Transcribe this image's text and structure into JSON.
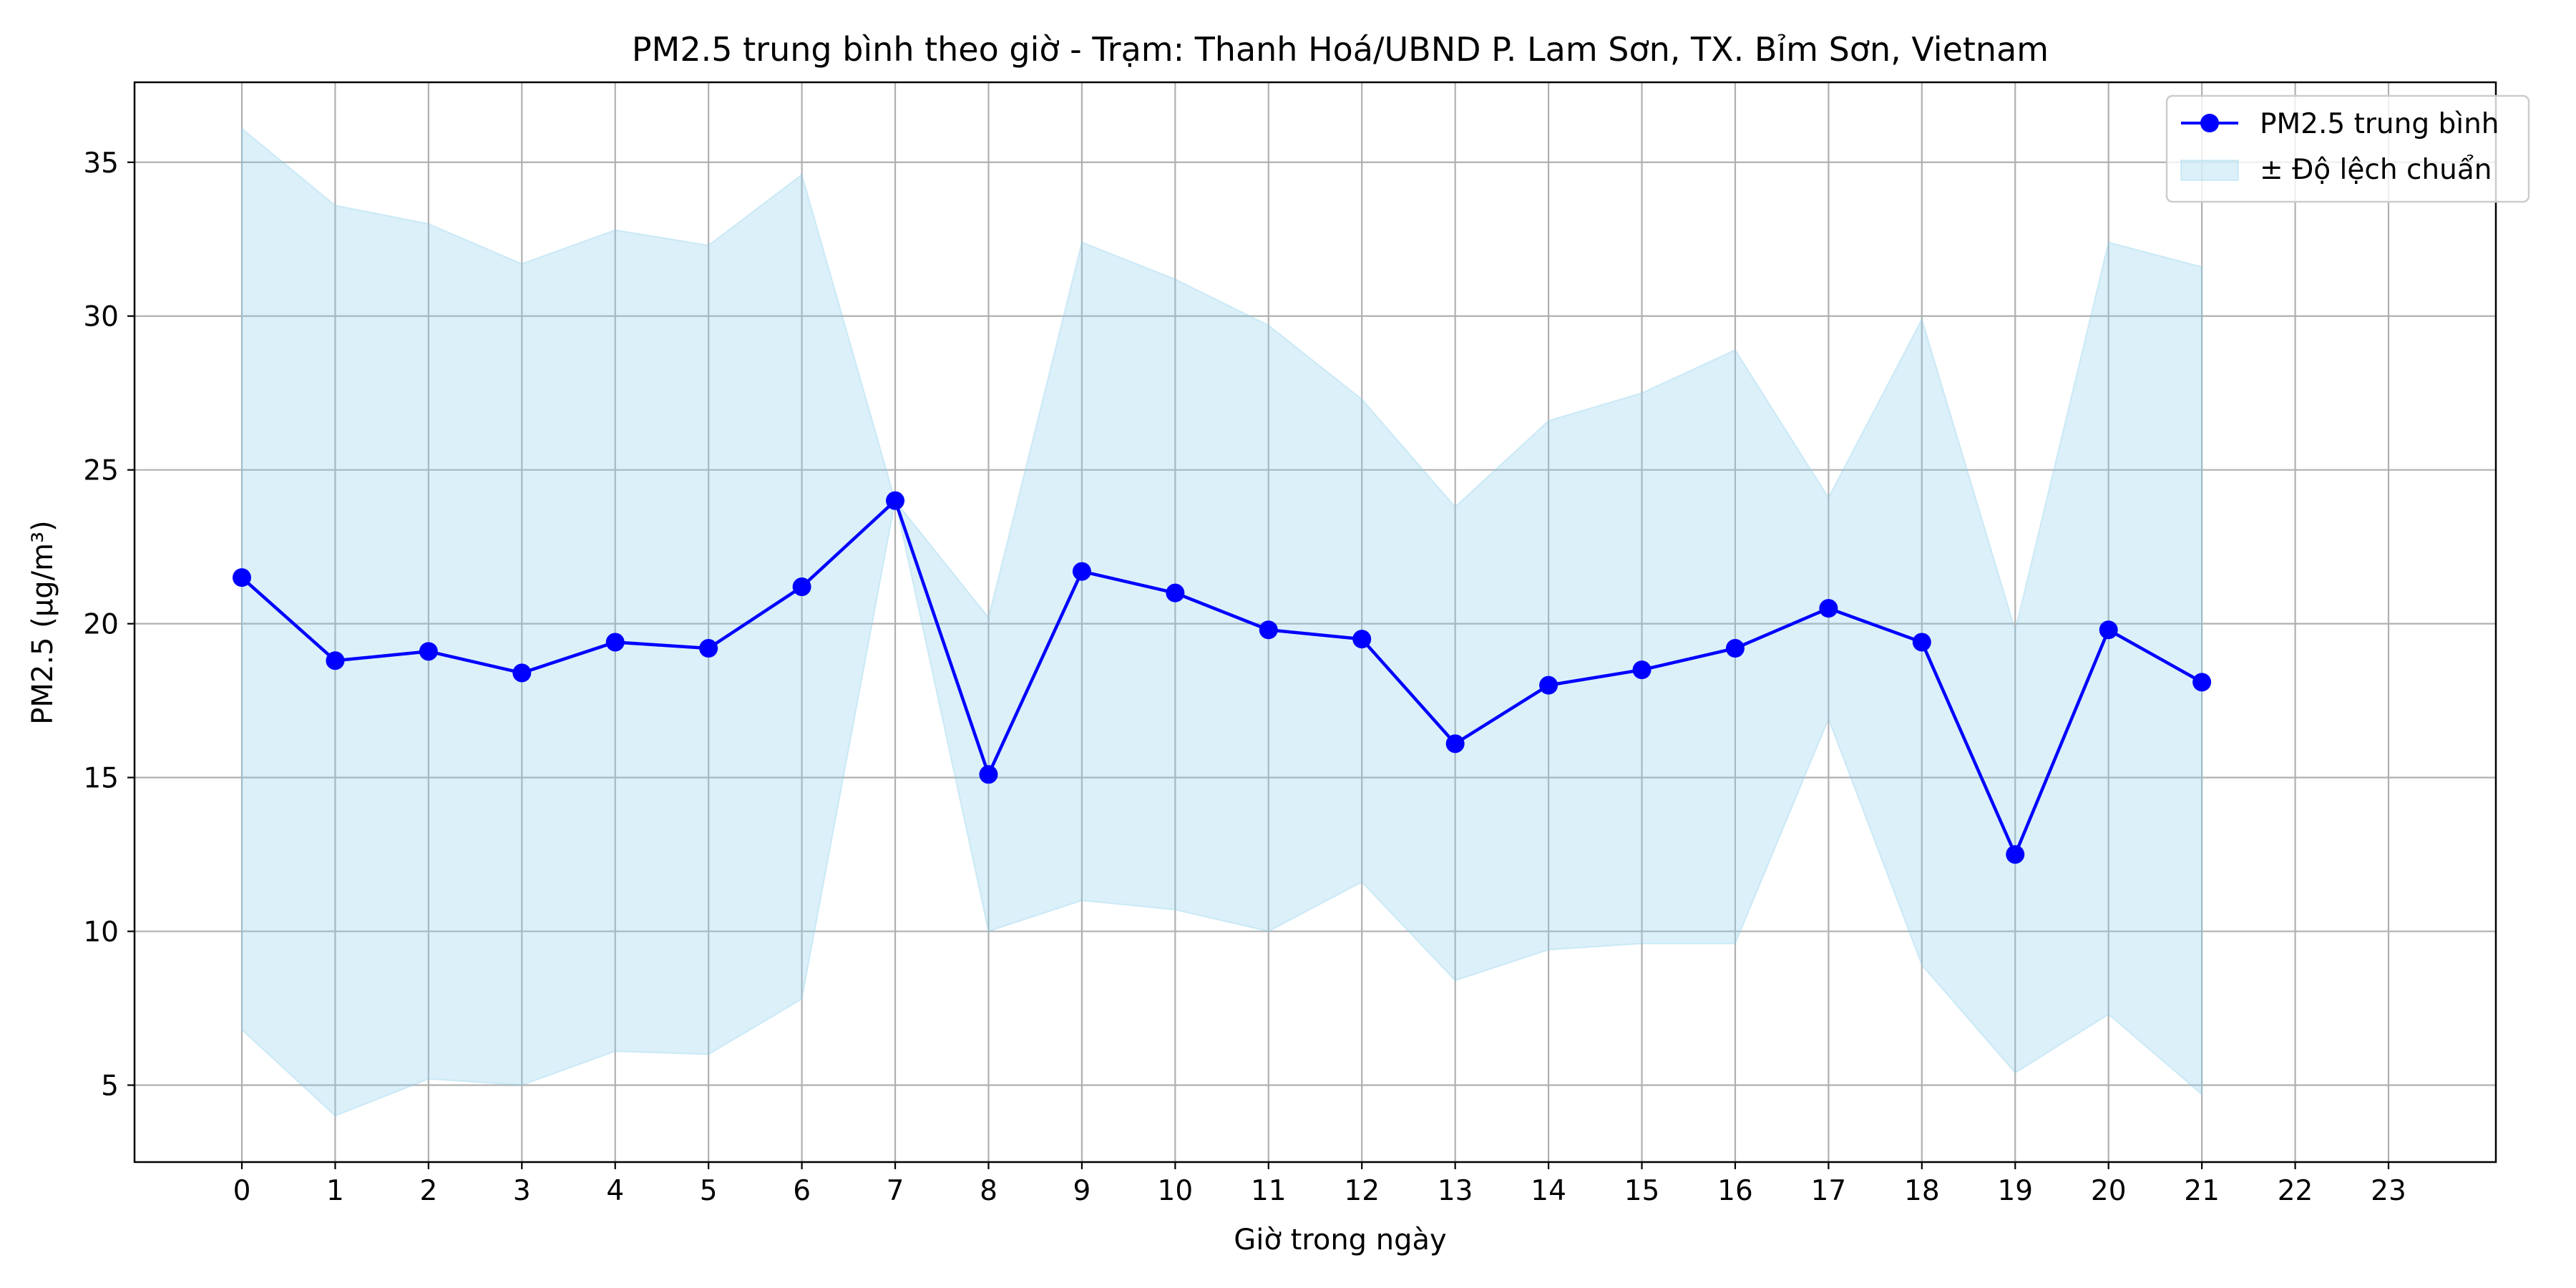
{
  "chart_data": {
    "type": "line",
    "title": "PM2.5 trung bình theo giờ - Trạm: Thanh Hoá/UBND P. Lam Sơn, TX. Bỉm Sơn, Vietnam",
    "xlabel": "Giờ trong ngày",
    "ylabel": "PM2.5 (µg/m³)",
    "x_tick_labels": [
      "0",
      "1",
      "2",
      "3",
      "4",
      "5",
      "6",
      "7",
      "8",
      "9",
      "10",
      "11",
      "12",
      "13",
      "14",
      "15",
      "16",
      "17",
      "18",
      "19",
      "20",
      "21",
      "22",
      "23"
    ],
    "y_ticks": [
      5,
      10,
      15,
      20,
      25,
      30,
      35
    ],
    "ylim": [
      2.5,
      37.6
    ],
    "grid": true,
    "legend_position": "top-right",
    "x": [
      0,
      1,
      2,
      3,
      4,
      5,
      6,
      7,
      10,
      11,
      12,
      13,
      14,
      15,
      16,
      17,
      18,
      19,
      20,
      21,
      22,
      23
    ],
    "series": [
      {
        "name": "PM2.5 trung bình",
        "color": "#0000ff",
        "marker": "circle",
        "values": [
          21.5,
          18.8,
          19.1,
          18.4,
          19.4,
          19.2,
          21.2,
          24.0,
          15.1,
          21.7,
          21.0,
          19.8,
          19.5,
          16.1,
          18.0,
          18.5,
          19.2,
          20.5,
          19.4,
          12.5,
          19.8,
          18.1
        ]
      }
    ],
    "band": {
      "name": "± Độ lệch chuẩn",
      "color": "#87ceeb",
      "opacity": 0.3,
      "upper": [
        36.1,
        33.6,
        33.0,
        31.7,
        32.8,
        32.3,
        34.6,
        24.0,
        20.2,
        32.4,
        31.2,
        29.7,
        27.3,
        23.8,
        26.6,
        27.5,
        28.9,
        24.1,
        29.9,
        19.8,
        32.4,
        31.6
      ],
      "lower": [
        6.8,
        4.0,
        5.2,
        5.0,
        6.1,
        6.0,
        7.8,
        24.0,
        10.0,
        11.0,
        10.7,
        10.0,
        11.6,
        8.4,
        9.4,
        9.6,
        9.6,
        16.9,
        8.9,
        5.4,
        7.3,
        4.7
      ]
    }
  }
}
